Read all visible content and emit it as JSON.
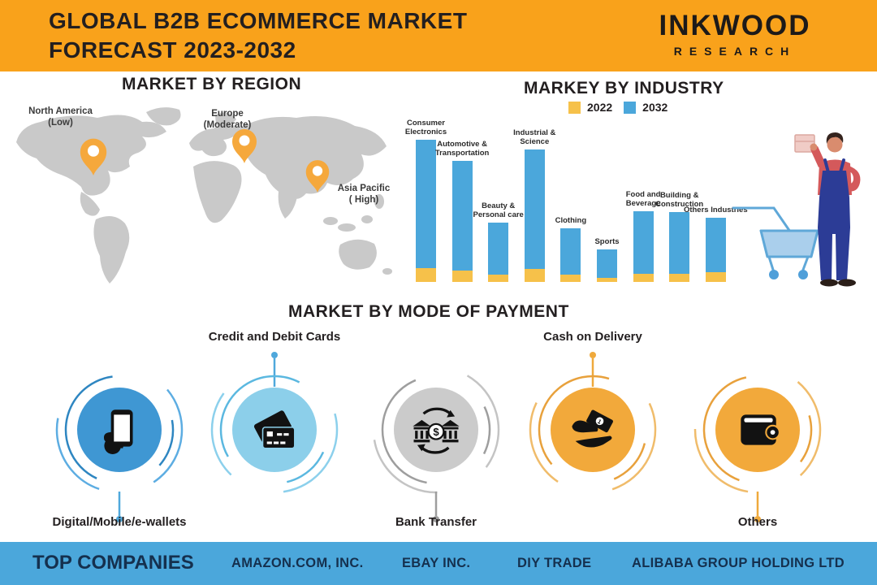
{
  "header": {
    "title_line1": "GLOBAL B2B ECOMMERCE MARKET",
    "title_line2": "FORECAST 2023-2032",
    "logo_line1": "INKWOOD",
    "logo_line2": "RESEARCH"
  },
  "region_section": {
    "heading": "MARKET BY REGION",
    "regions": [
      {
        "name": "North America",
        "level": "(Low)"
      },
      {
        "name": "Europe",
        "level": "(Moderate)"
      },
      {
        "name": "Asia Pacific",
        "level": "( High)"
      }
    ]
  },
  "industry_section": {
    "heading": "MARKEY BY INDUSTRY",
    "legend": [
      {
        "label": "2022",
        "color": "#F6C14A"
      },
      {
        "label": "2032",
        "color": "#4BA7DB"
      }
    ]
  },
  "chart_data": {
    "type": "bar",
    "stacked": true,
    "title": "MARKEY BY INDUSTRY",
    "categories": [
      "Consumer Electronics",
      "Automotive & Transportation",
      "Beauty & Personal care",
      "Industrial & Science",
      "Clothing",
      "Sports",
      "Food and Beverage",
      "Building & Construction",
      "Others Industries"
    ],
    "series": [
      {
        "name": "2022",
        "color": "#F6C14A",
        "values": [
          10,
          8,
          5,
          9,
          5,
          3,
          6,
          6,
          7
        ]
      },
      {
        "name": "2032",
        "color": "#4BA7DB",
        "values": [
          90,
          77,
          37,
          84,
          33,
          20,
          44,
          43,
          38
        ]
      }
    ],
    "xlabel": "",
    "ylabel": "",
    "ylim": [
      0,
      100
    ],
    "grid": false,
    "legend_position": "top"
  },
  "payment_section": {
    "heading": "MARKET BY MODE OF PAYMENT",
    "items": [
      {
        "label": "Digital/Mobile/e-wallets",
        "icon": "mobile-wallet-icon",
        "color": "#3F97D3",
        "label_position": "below"
      },
      {
        "label": "Credit and Debit Cards",
        "icon": "credit-card-icon",
        "color": "#8CCFEA",
        "label_position": "above"
      },
      {
        "label": "Bank Transfer",
        "icon": "bank-transfer-icon",
        "color": "#CBCBCB",
        "label_position": "below"
      },
      {
        "label": "Cash on Delivery",
        "icon": "cash-hand-icon",
        "color": "#F2A93B",
        "label_position": "above"
      },
      {
        "label": "Others",
        "icon": "wallet-icon",
        "color": "#F2A93B",
        "label_position": "below"
      }
    ]
  },
  "footer": {
    "heading": "TOP COMPANIES",
    "companies": [
      "AMAZON.COM, INC.",
      "EBAY INC.",
      "DIY TRADE",
      "ALIBABA GROUP HOLDING LTD"
    ]
  },
  "colors": {
    "header_orange": "#F9A21B",
    "pin_orange": "#F5A83C",
    "map_gray": "#C9C9C9",
    "bar_yellow": "#F6C14A",
    "bar_blue": "#4BA7DB",
    "footer_blue": "#4BA7DB",
    "footer_text_navy": "#15304E"
  }
}
